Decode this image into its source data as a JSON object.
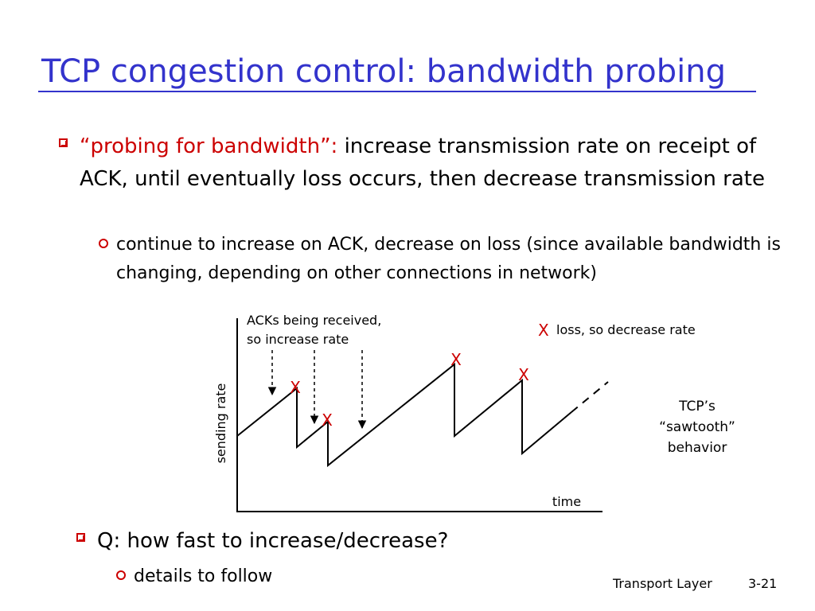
{
  "slide": {
    "title": "TCP congestion control: bandwidth probing",
    "bullets": [
      {
        "accent": "“probing for bandwidth”:",
        "text": "increase transmission rate on receipt of ACK, until eventually loss occurs, then decrease transmission rate",
        "sub": [
          "continue to increase on ACK, decrease on loss (since available bandwidth is changing, depending on other connections in network)"
        ]
      },
      {
        "text": "Q: how fast to increase/decrease?",
        "sub": [
          "details to follow"
        ]
      }
    ],
    "footer": {
      "section": "Transport Layer",
      "page": "3-21"
    }
  },
  "diagram": {
    "y_label": "sending rate",
    "x_label": "time",
    "ack_annotation": [
      "ACKs being received,",
      "so increase rate"
    ],
    "loss_legend_marker": "X",
    "loss_legend_text": "loss, so decrease rate",
    "loss_marker": "X",
    "sawtooth_caption": [
      "TCP’s",
      "“sawtooth”",
      "behavior"
    ],
    "accent_color": "#cc0000",
    "title_color": "#3333cc"
  }
}
